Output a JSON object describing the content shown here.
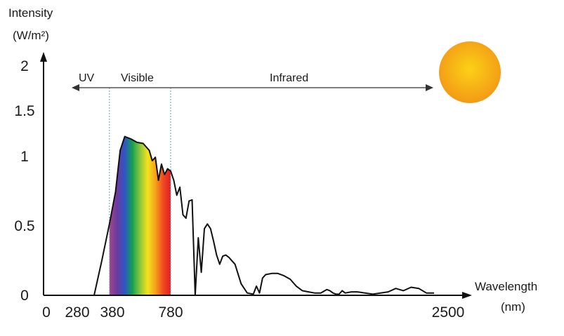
{
  "chart_data": {
    "type": "area",
    "title": "",
    "ylabel": "Intensity",
    "ylabel_unit": "(W/m²)",
    "xlabel": "Wavelength",
    "xlabel_unit": "(nm)",
    "ylim": [
      0,
      2
    ],
    "y_ticks": [
      "0",
      "0.5",
      "1",
      "1.5",
      "2"
    ],
    "x_ticks": [
      "0",
      "280",
      "380",
      "780",
      "2500"
    ],
    "regions": [
      {
        "label": "UV"
      },
      {
        "label": "Visible"
      },
      {
        "label": "Infrared"
      }
    ],
    "boundaries_nm": [
      380,
      780
    ],
    "spectrum_colors": [
      "#a0488c",
      "#6b3a9e",
      "#2e55c8",
      "#14a14f",
      "#8cc63e",
      "#f4e21c",
      "#f7a21b",
      "#ef4b22",
      "#e31e24"
    ],
    "sun_color": "#f7a21b",
    "x": [
      280,
      330,
      380,
      420,
      450,
      480,
      520,
      560,
      600,
      640,
      660,
      680,
      700,
      720,
      740,
      760,
      780,
      800,
      820,
      840,
      860,
      880,
      900,
      920,
      940,
      960,
      980,
      1000,
      1020,
      1040,
      1060,
      1080,
      1100,
      1120,
      1140,
      1160,
      1180,
      1200,
      1240,
      1280,
      1320,
      1340,
      1360,
      1380,
      1400,
      1440,
      1480,
      1520,
      1560,
      1600,
      1640,
      1680,
      1720,
      1760,
      1800,
      1820,
      1840,
      1860,
      1880,
      1900,
      1920,
      1960,
      2000,
      2100,
      2200,
      2250,
      2300,
      2350,
      2400,
      2450,
      2500
    ],
    "y": [
      0.0,
      0.3,
      0.62,
      0.9,
      1.26,
      1.38,
      1.36,
      1.33,
      1.32,
      1.26,
      1.17,
      1.2,
      1.0,
      1.14,
      1.05,
      1.1,
      1.08,
      1.0,
      0.87,
      0.94,
      0.7,
      0.67,
      0.82,
      0.83,
      0.0,
      0.5,
      0.2,
      0.58,
      0.62,
      0.58,
      0.47,
      0.35,
      0.27,
      0.34,
      0.35,
      0.33,
      0.3,
      0.27,
      0.1,
      0.02,
      0.01,
      0.08,
      0.02,
      0.15,
      0.18,
      0.19,
      0.19,
      0.17,
      0.14,
      0.08,
      0.04,
      0.03,
      0.02,
      0.02,
      0.05,
      0.04,
      0.02,
      0.01,
      0.01,
      0.04,
      0.02,
      0.03,
      0.03,
      0.01,
      0.03,
      0.06,
      0.04,
      0.07,
      0.06,
      0.02,
      0.02
    ]
  }
}
